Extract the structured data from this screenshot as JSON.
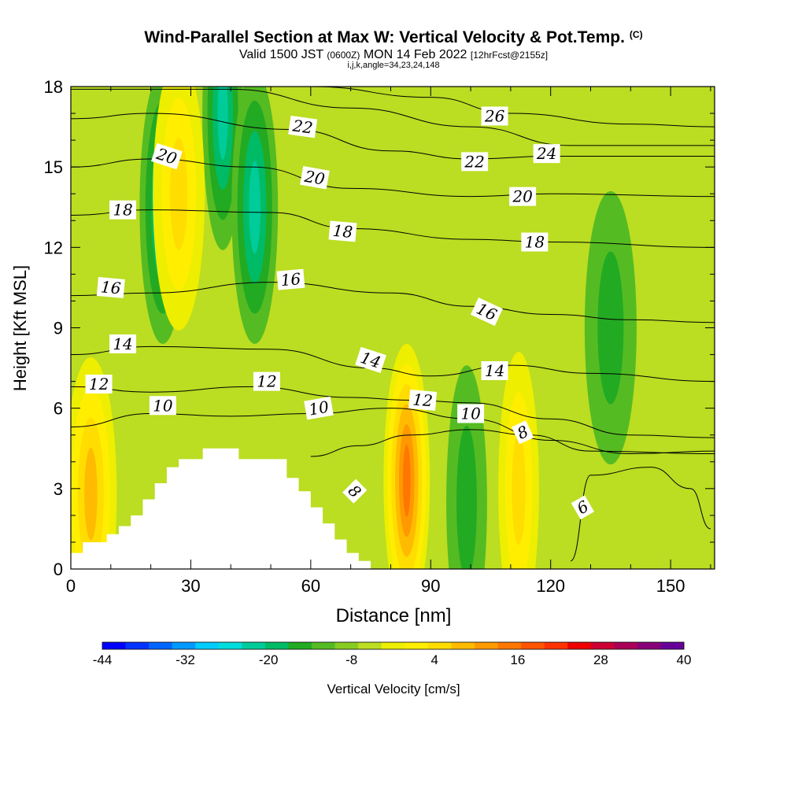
{
  "header": {
    "title": "Wind-Parallel Section at Max W: Vertical Velocity & Pot.Temp.",
    "copyright": "(C)",
    "valid_prefix": "Valid 1500 JST",
    "valid_z": "(0600Z)",
    "valid_date": "MON 14 Feb 2022",
    "forecast": "[12hrFcst@2155z]",
    "indices": "i,j,k,angle=34,23,24,148"
  },
  "chart_data": {
    "type": "heatmap",
    "xlabel": "Distance [nm]",
    "ylabel": "Height [Kft MSL]",
    "xlim": [
      0,
      161
    ],
    "ylim": [
      0,
      18
    ],
    "x_ticks": [
      0,
      30,
      60,
      90,
      120,
      150
    ],
    "x_tick_labels": [
      "0",
      "30",
      "60",
      "90",
      "120",
      "150"
    ],
    "y_ticks": [
      0,
      3,
      6,
      9,
      12,
      15,
      18
    ],
    "y_tick_labels": [
      "0",
      "3",
      "6",
      "9",
      "12",
      "15",
      "18"
    ],
    "colorbar": {
      "label": "Vertical Velocity [cm/s]",
      "min": -44,
      "max": 40,
      "step": 4,
      "tick_values": [
        -44,
        -32,
        -20,
        -8,
        4,
        16,
        28,
        40
      ],
      "tick_labels": [
        "-44",
        "-32",
        "-20",
        "-8",
        "4",
        "16",
        "28",
        "40"
      ],
      "colors": [
        "#0000ff",
        "#0033ff",
        "#0066ff",
        "#0099ff",
        "#00ccff",
        "#00dddd",
        "#00cc99",
        "#00bb66",
        "#22aa22",
        "#55bb22",
        "#88cc22",
        "#bbdd22",
        "#eeee00",
        "#ffee00",
        "#ffdd00",
        "#ffbb00",
        "#ff9900",
        "#ff7700",
        "#ff5500",
        "#ff3300",
        "#ee0000",
        "#cc0033",
        "#aa0055",
        "#880077",
        "#660099"
      ]
    },
    "terrain_profile": [
      {
        "x": 0,
        "h": 0.6
      },
      {
        "x": 3,
        "h": 1.0
      },
      {
        "x": 9,
        "h": 1.3
      },
      {
        "x": 12,
        "h": 1.6
      },
      {
        "x": 15,
        "h": 2.0
      },
      {
        "x": 18,
        "h": 2.6
      },
      {
        "x": 21,
        "h": 3.2
      },
      {
        "x": 24,
        "h": 3.8
      },
      {
        "x": 27,
        "h": 4.1
      },
      {
        "x": 33,
        "h": 4.5
      },
      {
        "x": 42,
        "h": 4.1
      },
      {
        "x": 51,
        "h": 4.1
      },
      {
        "x": 54,
        "h": 3.4
      },
      {
        "x": 57,
        "h": 2.9
      },
      {
        "x": 60,
        "h": 2.3
      },
      {
        "x": 63,
        "h": 1.7
      },
      {
        "x": 66,
        "h": 1.1
      },
      {
        "x": 69,
        "h": 0.6
      },
      {
        "x": 72,
        "h": 0.3
      }
    ],
    "velocity_features": [
      {
        "x": 5,
        "h": 2.8,
        "w": 0.5,
        "kind": "ascent",
        "v": 16
      },
      {
        "x": 23,
        "h": 13.5,
        "w": 0.4,
        "kind": "descent",
        "v": -16
      },
      {
        "x": 38,
        "h": 17,
        "w": 0.3,
        "kind": "descent",
        "v": -16
      },
      {
        "x": 46,
        "h": 13.5,
        "w": 0.4,
        "kind": "descent",
        "v": -16
      },
      {
        "x": 27,
        "h": 14,
        "w": 0.5,
        "kind": "ascent",
        "v": 12
      },
      {
        "x": 84,
        "h": 3.3,
        "w": 0.4,
        "kind": "ascent",
        "v": 24
      },
      {
        "x": 99,
        "h": 2.5,
        "w": 0.3,
        "kind": "descent",
        "v": -8
      },
      {
        "x": 112,
        "h": 3,
        "w": 0.3,
        "kind": "ascent",
        "v": 12
      },
      {
        "x": 135,
        "h": 9,
        "w": 0.5,
        "kind": "descent",
        "v": -8
      }
    ],
    "isentropes": [
      {
        "label": "6",
        "points": [
          [
            125,
            0.3
          ],
          [
            130,
            3.5
          ],
          [
            145,
            3.8
          ],
          [
            155,
            3
          ],
          [
            160,
            1.5
          ]
        ]
      },
      {
        "label": "8",
        "points": [
          [
            60,
            4.2
          ],
          [
            72,
            4.6
          ],
          [
            85,
            5.0
          ],
          [
            100,
            5.2
          ],
          [
            115,
            5.0
          ],
          [
            130,
            4.4
          ],
          [
            161,
            4.3
          ]
        ]
      },
      {
        "label": "10",
        "points": [
          [
            0,
            5.3
          ],
          [
            20,
            5.8
          ],
          [
            40,
            5.7
          ],
          [
            60,
            5.8
          ],
          [
            80,
            6.0
          ],
          [
            100,
            5.6
          ],
          [
            120,
            4.8
          ],
          [
            140,
            4.3
          ],
          [
            161,
            4.4
          ]
        ]
      },
      {
        "label": "12",
        "points": [
          [
            0,
            6.8
          ],
          [
            20,
            6.6
          ],
          [
            45,
            6.8
          ],
          [
            70,
            6.4
          ],
          [
            85,
            6.3
          ],
          [
            100,
            6.2
          ],
          [
            120,
            5.6
          ],
          [
            140,
            5.0
          ],
          [
            161,
            4.9
          ]
        ]
      },
      {
        "label": "14",
        "points": [
          [
            0,
            8.0
          ],
          [
            20,
            8.3
          ],
          [
            50,
            8.2
          ],
          [
            75,
            7.5
          ],
          [
            90,
            7.2
          ],
          [
            110,
            7.6
          ],
          [
            130,
            7.3
          ],
          [
            161,
            7.0
          ]
        ]
      },
      {
        "label": "16",
        "points": [
          [
            0,
            10.2
          ],
          [
            20,
            10.3
          ],
          [
            50,
            10.7
          ],
          [
            80,
            10.3
          ],
          [
            100,
            9.8
          ],
          [
            120,
            9.5
          ],
          [
            140,
            9.3
          ],
          [
            161,
            9.2
          ]
        ]
      },
      {
        "label": "18",
        "points": [
          [
            0,
            13.2
          ],
          [
            20,
            13.4
          ],
          [
            50,
            13.3
          ],
          [
            70,
            12.7
          ],
          [
            100,
            12.3
          ],
          [
            120,
            12.2
          ],
          [
            161,
            12.0
          ]
        ]
      },
      {
        "label": "20",
        "points": [
          [
            0,
            15.0
          ],
          [
            20,
            15.3
          ],
          [
            45,
            15.0
          ],
          [
            70,
            14.2
          ],
          [
            100,
            13.9
          ],
          [
            120,
            14.0
          ],
          [
            161,
            13.9
          ]
        ]
      },
      {
        "label": "22",
        "points": [
          [
            0,
            16.8
          ],
          [
            20,
            17.0
          ],
          [
            55,
            16.4
          ],
          [
            80,
            15.6
          ],
          [
            100,
            15.3
          ],
          [
            120,
            15.4
          ],
          [
            161,
            15.4
          ]
        ]
      },
      {
        "label": "24",
        "points": [
          [
            0,
            17.9
          ],
          [
            40,
            17.9
          ],
          [
            70,
            17.2
          ],
          [
            100,
            16.5
          ],
          [
            125,
            15.8
          ],
          [
            161,
            15.8
          ]
        ]
      },
      {
        "label": "26",
        "points": [
          [
            60,
            18
          ],
          [
            90,
            17.6
          ],
          [
            110,
            17.0
          ],
          [
            140,
            16.6
          ],
          [
            161,
            16.5
          ]
        ]
      }
    ],
    "contour_labels": [
      {
        "text": "20",
        "x": 24,
        "y": 15.4,
        "rot": 18
      },
      {
        "text": "22",
        "x": 58,
        "y": 16.5,
        "rot": 8
      },
      {
        "text": "20",
        "x": 61,
        "y": 14.6,
        "rot": 10
      },
      {
        "text": "18",
        "x": 13,
        "y": 13.4,
        "rot": 0
      },
      {
        "text": "18",
        "x": 68,
        "y": 12.6,
        "rot": 5
      },
      {
        "text": "16",
        "x": 10,
        "y": 10.5,
        "rot": 5
      },
      {
        "text": "16",
        "x": 55,
        "y": 10.8,
        "rot": -5
      },
      {
        "text": "14",
        "x": 13,
        "y": 8.4,
        "rot": 0
      },
      {
        "text": "14",
        "x": 75,
        "y": 7.8,
        "rot": 18
      },
      {
        "text": "12",
        "x": 7,
        "y": 6.9,
        "rot": 0
      },
      {
        "text": "12",
        "x": 49,
        "y": 7.0,
        "rot": 0
      },
      {
        "text": "12",
        "x": 88,
        "y": 6.3,
        "rot": 5
      },
      {
        "text": "10",
        "x": 23,
        "y": 6.1,
        "rot": 0
      },
      {
        "text": "10",
        "x": 62,
        "y": 6.0,
        "rot": -10
      },
      {
        "text": "10",
        "x": 100,
        "y": 5.8,
        "rot": 0
      },
      {
        "text": "8",
        "x": 71,
        "y": 2.9,
        "rot": 45
      },
      {
        "text": "8",
        "x": 113,
        "y": 5.1,
        "rot": -25
      },
      {
        "text": "6",
        "x": 128,
        "y": 2.3,
        "rot": -30
      },
      {
        "text": "26",
        "x": 106,
        "y": 16.9,
        "rot": 0
      },
      {
        "text": "24",
        "x": 119,
        "y": 15.5,
        "rot": 0
      },
      {
        "text": "22",
        "x": 101,
        "y": 15.2,
        "rot": 0
      },
      {
        "text": "20",
        "x": 113,
        "y": 13.9,
        "rot": 0
      },
      {
        "text": "18",
        "x": 116,
        "y": 12.2,
        "rot": 0
      },
      {
        "text": "16",
        "x": 104,
        "y": 9.6,
        "rot": 25
      },
      {
        "text": "14",
        "x": 106,
        "y": 7.4,
        "rot": 0
      }
    ]
  }
}
